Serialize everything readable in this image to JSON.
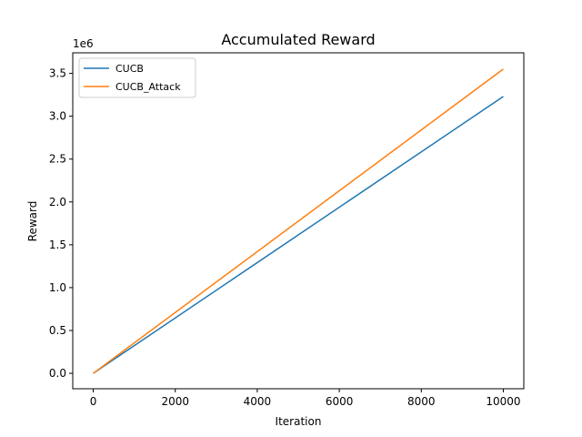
{
  "chart_data": {
    "type": "line",
    "title": "Accumulated Reward",
    "xlabel": "Iteration",
    "ylabel": "Reward",
    "y_offset_label": "1e6",
    "xlim": [
      -500,
      10500
    ],
    "ylim": [
      -0.18,
      3.74
    ],
    "xticks": [
      0,
      2000,
      4000,
      6000,
      8000,
      10000
    ],
    "xtick_labels": [
      "0",
      "2000",
      "4000",
      "6000",
      "8000",
      "10000"
    ],
    "yticks": [
      0.0,
      0.5,
      1.0,
      1.5,
      2.0,
      2.5,
      3.0,
      3.5
    ],
    "ytick_labels": [
      "0.0",
      "0.5",
      "1.0",
      "1.5",
      "2.0",
      "2.5",
      "3.0",
      "3.5"
    ],
    "grid": false,
    "legend_position": "top-left",
    "series": [
      {
        "name": "CUCB",
        "color": "#1f77b4",
        "x": [
          0,
          10000
        ],
        "y": [
          0.0,
          3.23
        ]
      },
      {
        "name": "CUCB_Attack",
        "color": "#ff7f0e",
        "x": [
          0,
          10000
        ],
        "y": [
          0.0,
          3.55
        ]
      }
    ]
  }
}
